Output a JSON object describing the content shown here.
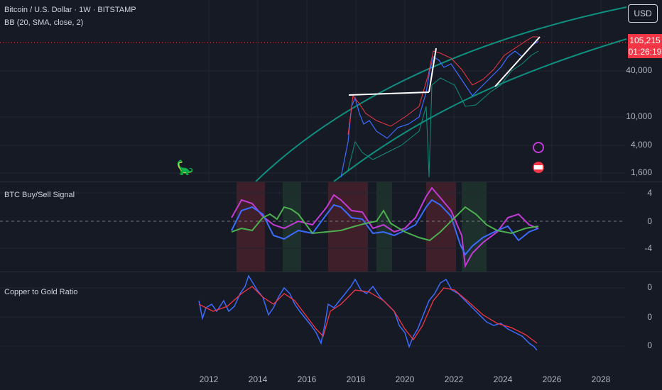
{
  "header": {
    "symbol": "Bitcoin / U.S. Dollar · 1W · BITSTAMP",
    "indicator": "BB (20, SMA, close, 2)"
  },
  "currency_button": "USD",
  "price_tag": {
    "price": "105,215",
    "countdown": "01:26:19"
  },
  "main_axis": {
    "labels": [
      "40,000",
      "10,000",
      "4,000",
      "1,600"
    ]
  },
  "signal_panel": {
    "title": "BTC Buy/Sell Signal",
    "labels": [
      "4",
      "0",
      "-4"
    ]
  },
  "ratio_panel": {
    "title": "Copper to Gold Ratio",
    "labels": [
      "0",
      "0",
      "0"
    ]
  },
  "x_axis": {
    "labels": [
      "2012",
      "2014",
      "2016",
      "2018",
      "2020",
      "2022",
      "2024",
      "2026",
      "2028"
    ]
  },
  "colors": {
    "background": "#161a25",
    "red": "#f23645",
    "teal": "#0f8f7e",
    "blue": "#3b6bff",
    "magenta": "#c23bd4",
    "green": "#4caf50"
  }
}
